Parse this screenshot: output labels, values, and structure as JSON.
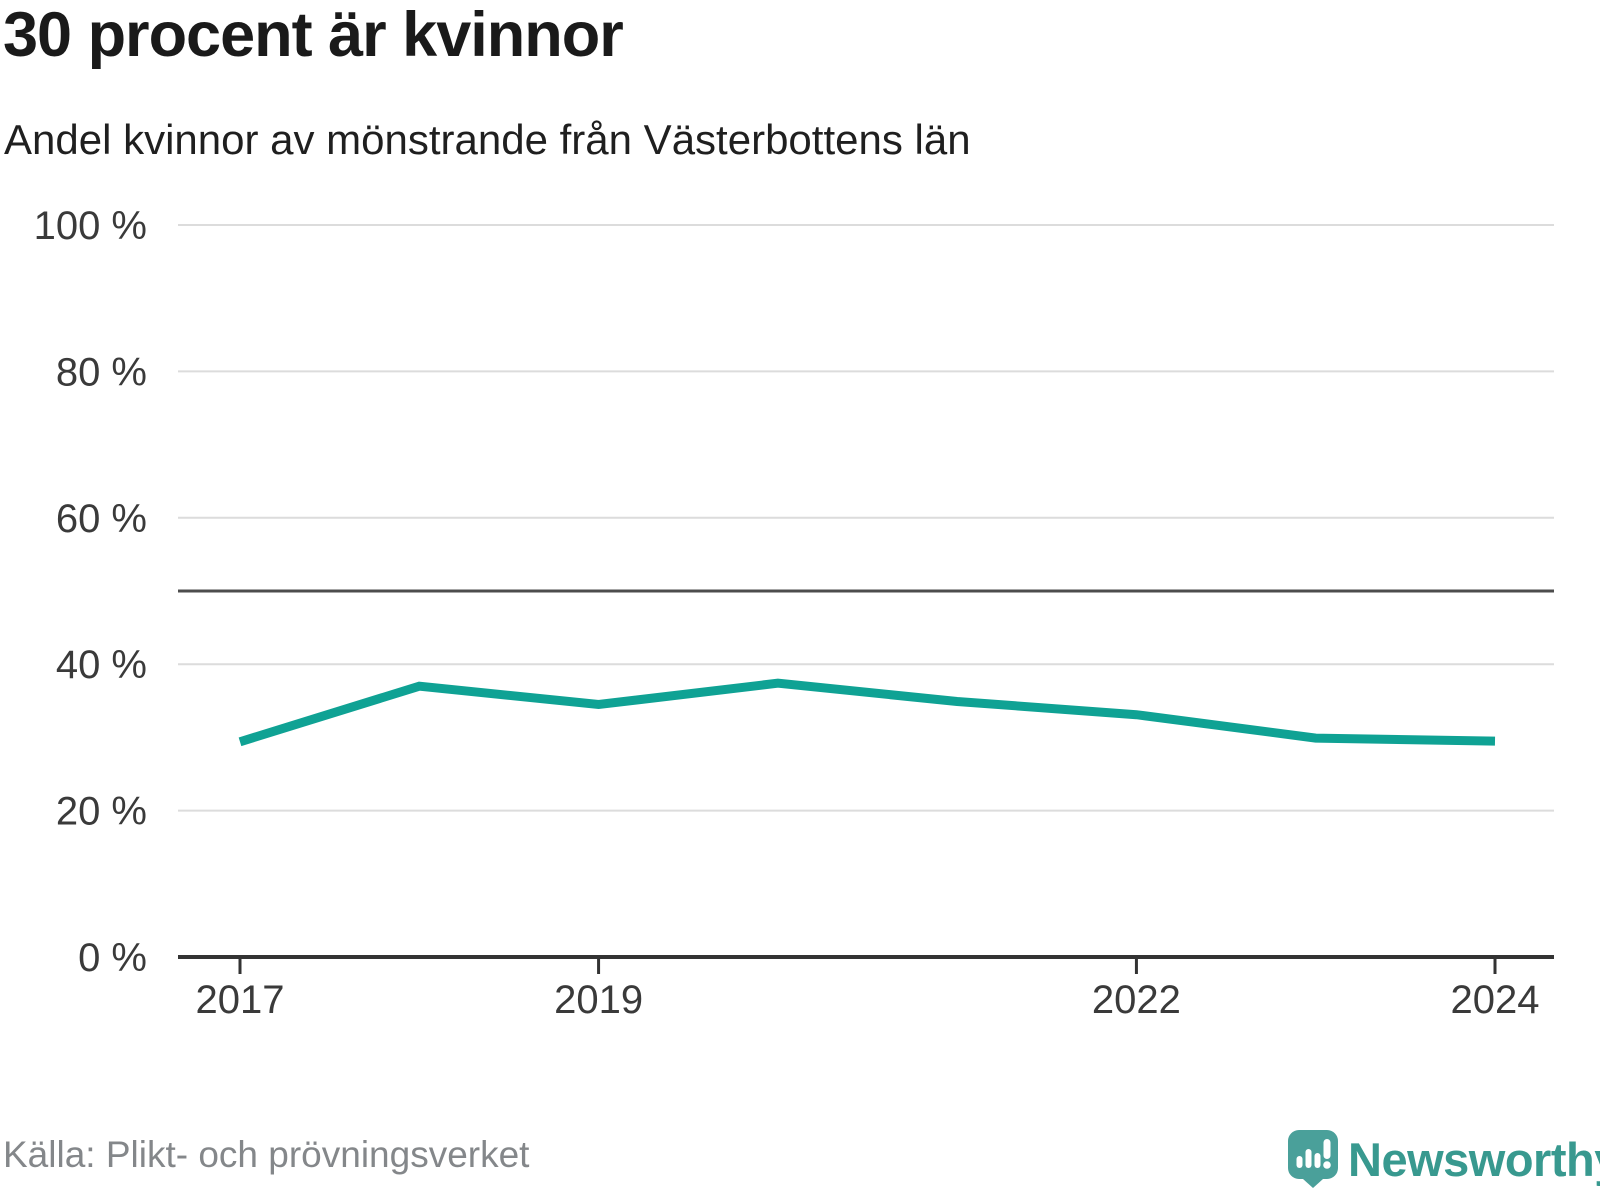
{
  "header": {
    "title": "30 procent är kvinnor",
    "subtitle": "Andel kvinnor av mönstrande från Västerbottens län"
  },
  "footer": {
    "source": "Källa: Plikt- och prövningsverket",
    "brand": "Newsworthy"
  },
  "colors": {
    "accent": "#0fa294",
    "brand_icon": "#4aa09a",
    "brand_text": "#38998f",
    "grid": "#dcdcdc",
    "reference_line": "#4d4d4d",
    "axis": "#333333",
    "axis_label": "#3a3a3a",
    "title_text": "#1a1a1a",
    "muted_text": "#84878a"
  },
  "chart_data": {
    "type": "line",
    "title": "30 procent är kvinnor",
    "subtitle": "Andel kvinnor av mönstrande från Västerbottens län",
    "source": "Källa: Plikt- och prövningsverket",
    "unit": "%",
    "x": [
      2017,
      2018,
      2019,
      2020,
      2021,
      2022,
      2023,
      2024
    ],
    "series": [
      {
        "name": "Andel kvinnor av mönstrande från Västerbottens län",
        "values": [
          29.4,
          37.0,
          34.5,
          37.4,
          34.9,
          33.1,
          29.9,
          29.5
        ]
      }
    ],
    "ylim": [
      0,
      100
    ],
    "yticks": [
      0,
      20,
      40,
      60,
      80,
      100
    ],
    "ytick_labels": [
      "0 %",
      "20 %",
      "40 %",
      "60 %",
      "80 %",
      "100 %"
    ],
    "xticks": [
      2017,
      2019,
      2022,
      2024
    ],
    "xtick_labels": [
      "2017",
      "2019",
      "2022",
      "2024"
    ],
    "reference_line": {
      "value": 50
    },
    "grid": "horizontal",
    "legend": "none"
  }
}
